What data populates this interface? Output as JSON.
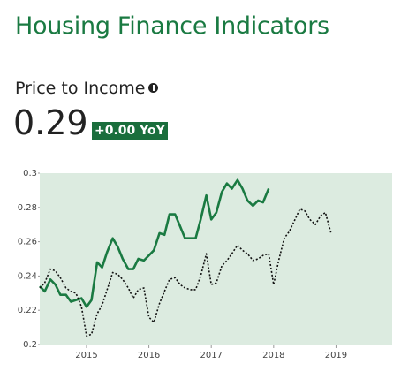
{
  "header": {
    "title": "Housing Finance Indicators"
  },
  "indicator": {
    "name": "Price to Income",
    "value": 0.29,
    "change": "+0.00 YoY"
  },
  "chart_data": {
    "type": "line",
    "x": [
      2014.25,
      2014.33,
      2014.42,
      2014.5,
      2014.58,
      2014.67,
      2014.75,
      2014.83,
      2014.92,
      2015,
      2015.08,
      2015.17,
      2015.25,
      2015.33,
      2015.42,
      2015.5,
      2015.58,
      2015.67,
      2015.75,
      2015.83,
      2015.92,
      2016,
      2016.08,
      2016.17,
      2016.25,
      2016.33,
      2016.42,
      2016.5,
      2016.58,
      2016.67,
      2016.75,
      2016.83,
      2016.92,
      2017,
      2017.08,
      2017.17,
      2017.25,
      2017.33,
      2017.42,
      2017.5,
      2017.58,
      2017.67,
      2017.75,
      2017.83,
      2017.92,
      2018,
      2018.08,
      2018.17,
      2018.25,
      2018.33,
      2018.42,
      2018.5,
      2018.58,
      2018.67,
      2018.75,
      2018.83,
      2018.92
    ],
    "series": [
      {
        "color": "#1a7a42",
        "dashed": false,
        "values": [
          0.234,
          0.231,
          0.238,
          0.235,
          0.229,
          0.229,
          0.225,
          0.226,
          0.227,
          0.222,
          0.226,
          0.248,
          0.245,
          0.254,
          0.262,
          0.257,
          0.25,
          0.244,
          0.244,
          0.25,
          0.249,
          0.252,
          0.255,
          0.265,
          0.264,
          0.276,
          0.276,
          0.269,
          0.262,
          0.262,
          0.262,
          0.273,
          0.287,
          0.273,
          0.277,
          0.289,
          0.294,
          0.291,
          0.296,
          0.291,
          0.284,
          0.281,
          0.284,
          0.283,
          0.291,
          null,
          null,
          null,
          null,
          null,
          null,
          null,
          null,
          null,
          null,
          null,
          null
        ]
      },
      {
        "color": "#111111",
        "dashed": true,
        "values": [
          0.233,
          0.236,
          0.244,
          0.243,
          0.239,
          0.233,
          0.231,
          0.23,
          0.222,
          0.205,
          0.206,
          0.218,
          0.223,
          0.232,
          0.242,
          0.241,
          0.238,
          0.233,
          0.227,
          0.232,
          0.233,
          0.216,
          0.213,
          0.224,
          0.231,
          0.238,
          0.239,
          0.235,
          0.233,
          0.232,
          0.232,
          0.24,
          0.253,
          0.235,
          0.236,
          0.246,
          0.249,
          0.253,
          0.258,
          0.255,
          0.253,
          0.249,
          0.25,
          0.252,
          0.253,
          0.235,
          0.249,
          0.262,
          0.266,
          0.272,
          0.279,
          0.278,
          0.273,
          0.27,
          0.275,
          0.277,
          0.265
        ]
      }
    ],
    "xlim": [
      2014.25,
      2019.9
    ],
    "xticks": [
      2015,
      2016,
      2017,
      2018,
      2019
    ],
    "ylim": [
      0.2,
      0.3
    ],
    "yticks": [
      0.2,
      0.22,
      0.24,
      0.26,
      0.28,
      0.3
    ],
    "background": "#dcebe0",
    "grid": false
  }
}
